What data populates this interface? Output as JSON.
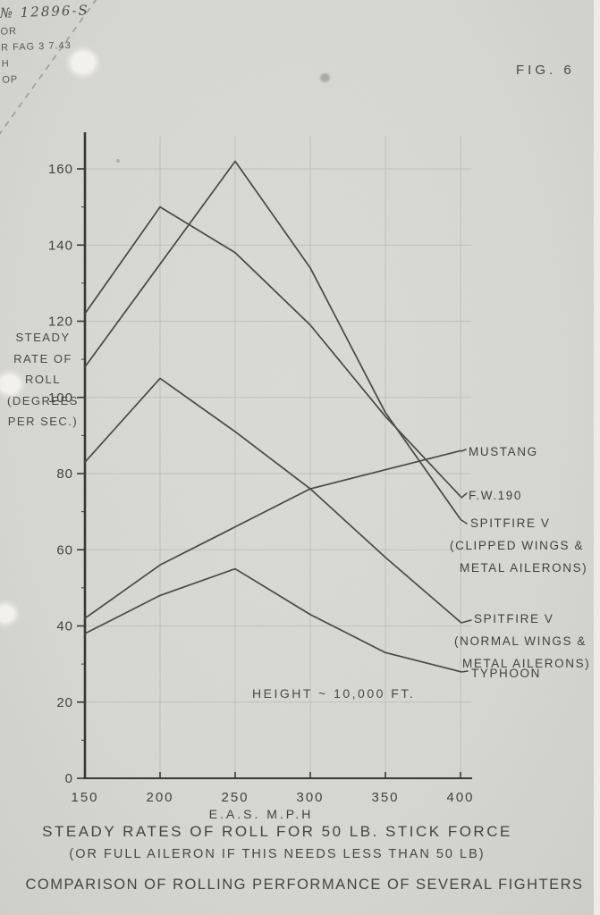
{
  "page": {
    "fig_label": "FIG. 6"
  },
  "stamp": {
    "lines": [
      "№ 12896-S",
      "OR",
      "R FAG 3 7.43",
      "H",
      "OP"
    ]
  },
  "chart_data": {
    "type": "line",
    "title": "STEADY RATES OF ROLL FOR 50 LB. STICK FORCE",
    "subtitle": "(OR FULL AILERON IF THIS NEEDS LESS THAN 50 LB)",
    "footer": "COMPARISON OF ROLLING PERFORMANCE OF SEVERAL FIGHTERS",
    "annotation": "HEIGHT ~ 10,000 FT.",
    "x_axis_label": "E.A.S. M.P.H",
    "y_axis_label": "STEADY RATE OF ROLL (DEGREES PER SEC.)",
    "y_axis_label_lines": [
      "STEADY",
      "RATE OF",
      "ROLL",
      "(DEGREES",
      "PER SEC.)"
    ],
    "x": [
      150,
      200,
      250,
      300,
      350,
      400
    ],
    "x_ticks": [
      150,
      200,
      250,
      300,
      350,
      400
    ],
    "y_ticks": [
      0,
      20,
      40,
      60,
      80,
      100,
      120,
      140,
      160
    ],
    "xlim": [
      150,
      400
    ],
    "ylim": [
      0,
      170
    ],
    "grid": true,
    "legend_position": "right",
    "series": [
      {
        "name": "MUSTANG",
        "label_lines": [
          "MUSTANG"
        ],
        "values": [
          42,
          56,
          66,
          76,
          81,
          86
        ]
      },
      {
        "name": "F.W.190",
        "label_lines": [
          "F.W.190"
        ],
        "values": [
          122,
          150,
          138,
          119,
          95,
          74
        ]
      },
      {
        "name": "SPITFIRE V (CLIPPED WINGS & METAL AILERONS)",
        "label_lines": [
          "SPITFIRE V",
          "(CLIPPED WINGS &",
          "METAL AILERONS)"
        ],
        "values": [
          108,
          135,
          162,
          134,
          96,
          68
        ]
      },
      {
        "name": "SPITFIRE V (NORMAL WINGS & METAL AILERONS)",
        "label_lines": [
          "SPITFIRE V",
          "(NORMAL WINGS &",
          "METAL AILERONS)"
        ],
        "values": [
          83,
          105,
          91,
          76,
          58,
          41
        ]
      },
      {
        "name": "TYPHOON",
        "label_lines": [
          "TYPHOON"
        ],
        "values": [
          38,
          48,
          55,
          43,
          33,
          28
        ]
      }
    ]
  },
  "colors": {
    "paper": "#d7d7d2",
    "ink": "#3e3d38",
    "curve": "#45443e",
    "grid": "#bdbdb7",
    "axis": "#34332e"
  }
}
